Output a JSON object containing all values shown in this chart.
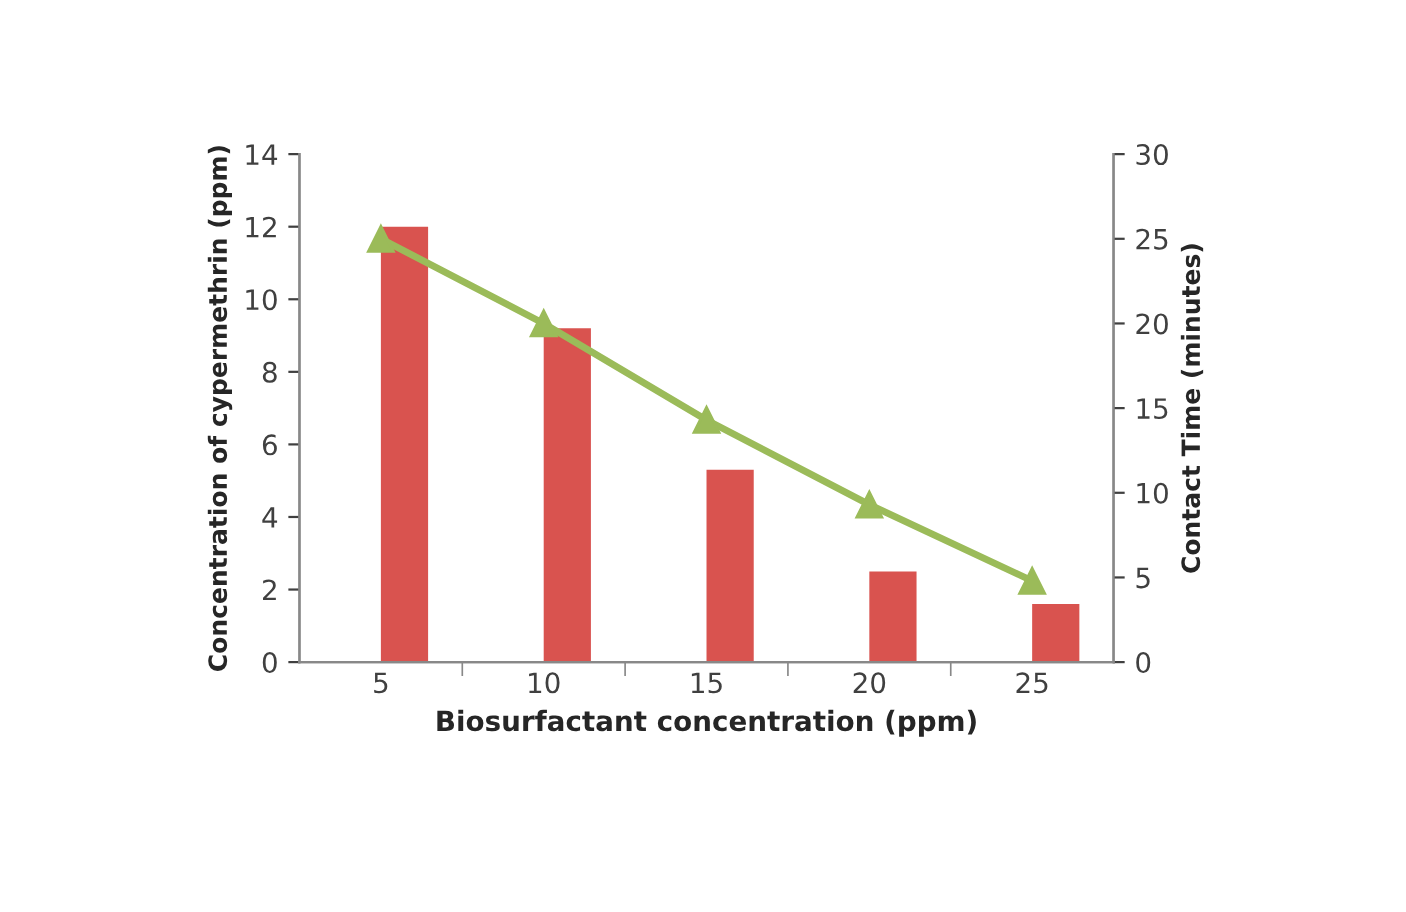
{
  "chart_data": {
    "type": "bar",
    "xlabel": "Biosurfactant concentration (ppm)",
    "ylabel": "Concentration of cypermethrin (ppm)",
    "y2label": "Contact Time (minutes)",
    "categories": [
      "5",
      "10",
      "15",
      "20",
      "25"
    ],
    "series": [
      {
        "color": "#d9534f",
        "values": [
          12,
          9.2,
          5.3,
          2.5,
          1.6
        ]
      },
      {
        "type": "line",
        "axis": "y2",
        "color": "#9bbb59",
        "marker": "triangle",
        "values": [
          25,
          20,
          14.3,
          9.3,
          4.8
        ]
      }
    ],
    "ylim": [
      0,
      14
    ],
    "yticks": [
      0,
      2,
      4,
      6,
      8,
      10,
      12,
      14
    ],
    "y2lim": [
      0,
      30
    ],
    "y2ticks": [
      0,
      5,
      10,
      15,
      20,
      25,
      30
    ],
    "grid": false,
    "legend": false
  }
}
